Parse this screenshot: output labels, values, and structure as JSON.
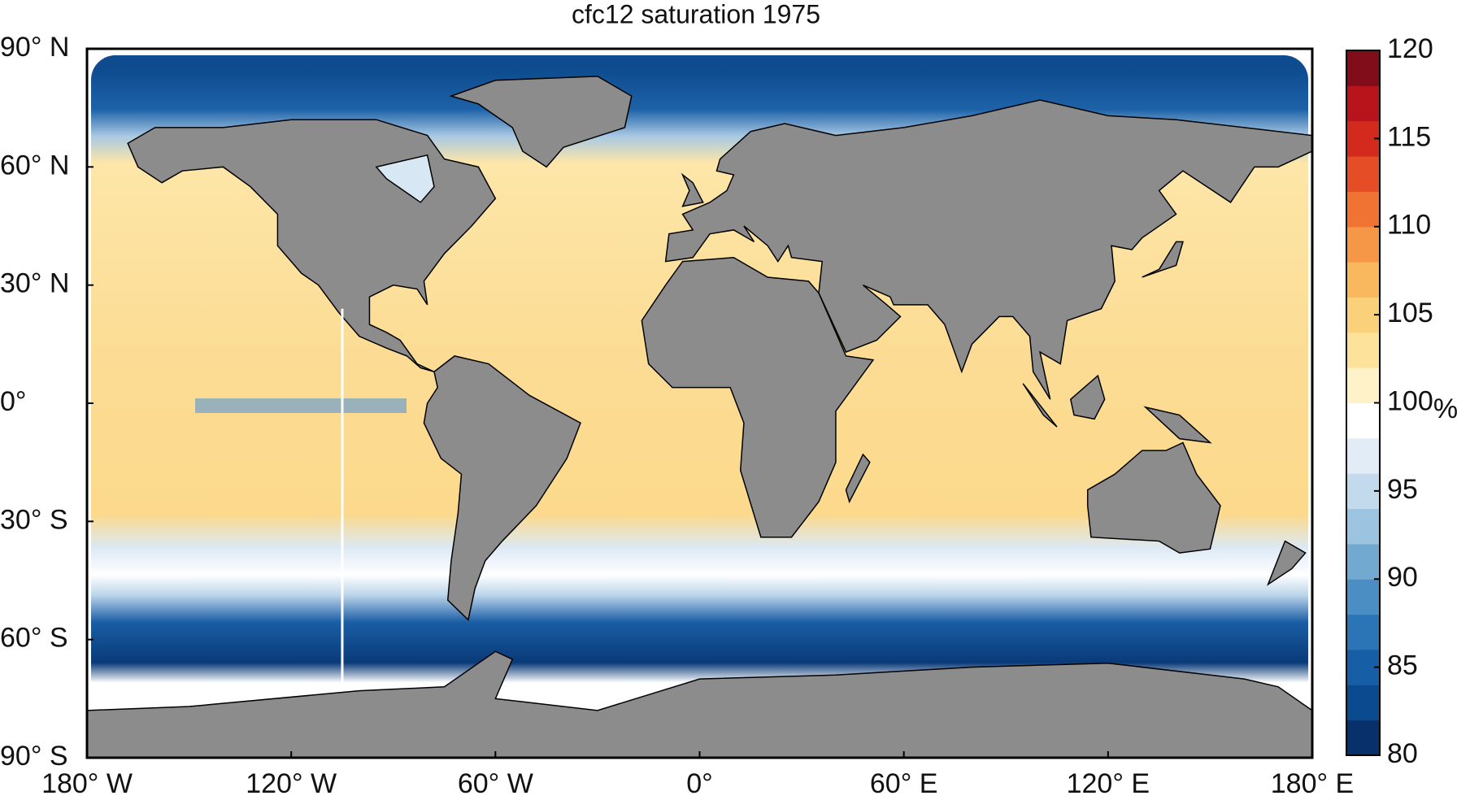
{
  "chart_data": {
    "type": "map",
    "title": "cfc12 saturation 1975",
    "xlim": [
      -180,
      180
    ],
    "ylim": [
      -90,
      90
    ],
    "xticks": [
      {
        "value": -180,
        "label": "180° W"
      },
      {
        "value": -120,
        "label": "120° W"
      },
      {
        "value": -60,
        "label": "60° W"
      },
      {
        "value": 0,
        "label": "0°"
      },
      {
        "value": 60,
        "label": "60° E"
      },
      {
        "value": 120,
        "label": "120° E"
      },
      {
        "value": 180,
        "label": "180° E"
      }
    ],
    "yticks": [
      {
        "value": 90,
        "label": "90° N"
      },
      {
        "value": 60,
        "label": "60° N"
      },
      {
        "value": 30,
        "label": "30° N"
      },
      {
        "value": 0,
        "label": "0°"
      },
      {
        "value": -30,
        "label": "30° S"
      },
      {
        "value": -60,
        "label": "60° S"
      },
      {
        "value": -90,
        "label": "90° S"
      }
    ],
    "colorbar": {
      "label": "%",
      "lim": [
        80,
        120
      ],
      "ticks": [
        80,
        85,
        90,
        95,
        100,
        105,
        110,
        115,
        120
      ],
      "colormap": [
        "#08306b",
        "#0b4a8f",
        "#165fa6",
        "#2b74b6",
        "#4a8ec4",
        "#72a9d1",
        "#9cc3df",
        "#c3d9ec",
        "#e2ecf6",
        "#ffffff",
        "#fff2c8",
        "#fde29c",
        "#fbd07a",
        "#f9b75e",
        "#f69647",
        "#f07334",
        "#e44d26",
        "#d42a1e",
        "#b8141b",
        "#800d19"
      ]
    }
  }
}
